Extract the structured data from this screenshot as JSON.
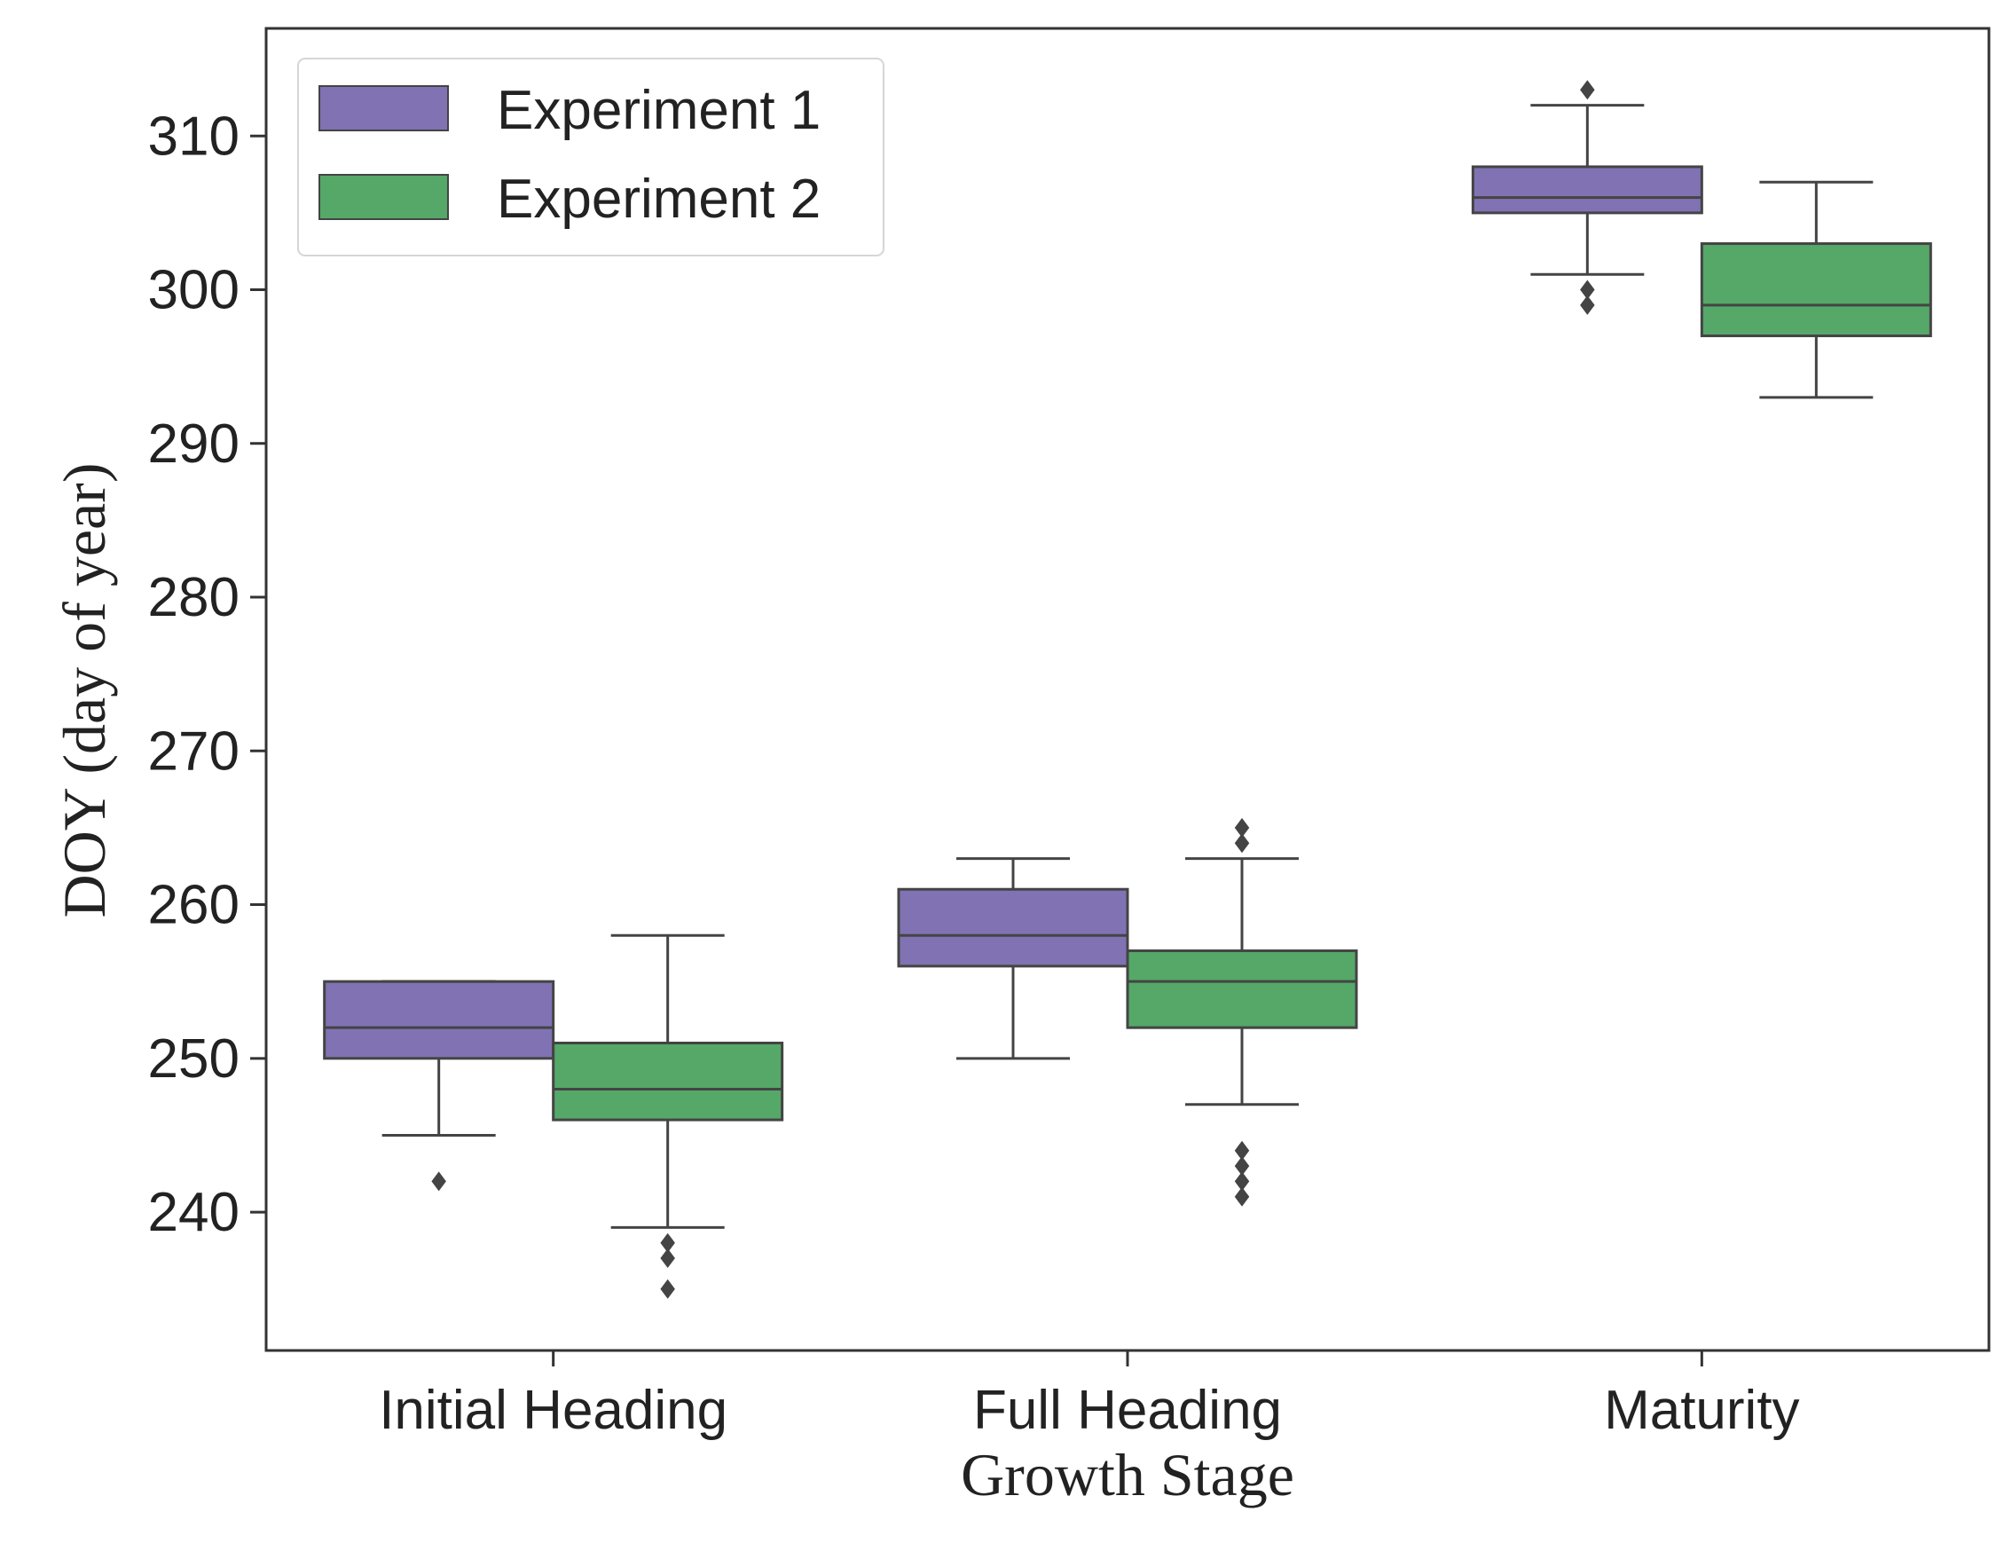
{
  "chart_data": {
    "type": "box",
    "xlabel": "Growth Stage",
    "ylabel": "DOY (day of year)",
    "ylim": [
      231,
      317
    ],
    "yticks": [
      240,
      250,
      260,
      270,
      280,
      290,
      300,
      310
    ],
    "categories": [
      "Initial Heading",
      "Full Heading",
      "Maturity"
    ],
    "legend_position": "top-left",
    "series": [
      {
        "name": "Experiment 1",
        "color": "#8172b3",
        "boxes": [
          {
            "category": "Initial Heading",
            "whisker_low": 245,
            "q1": 250,
            "median": 252,
            "q3": 255,
            "whisker_high": 255,
            "outliers": [
              242
            ]
          },
          {
            "category": "Full Heading",
            "whisker_low": 250,
            "q1": 256,
            "median": 258,
            "q3": 261,
            "whisker_high": 263,
            "outliers": []
          },
          {
            "category": "Maturity",
            "whisker_low": 301,
            "q1": 305,
            "median": 306,
            "q3": 308,
            "whisker_high": 312,
            "outliers": [
              313,
              300,
              299
            ]
          }
        ]
      },
      {
        "name": "Experiment 2",
        "color": "#55a868",
        "boxes": [
          {
            "category": "Initial Heading",
            "whisker_low": 239,
            "q1": 246,
            "median": 248,
            "q3": 251,
            "whisker_high": 258,
            "outliers": [
              238,
              237,
              235
            ]
          },
          {
            "category": "Full Heading",
            "whisker_low": 247,
            "q1": 252,
            "median": 255,
            "q3": 257,
            "whisker_high": 263,
            "outliers": [
              265,
              264,
              244,
              243,
              242,
              241
            ]
          },
          {
            "category": "Maturity",
            "whisker_low": 293,
            "q1": 297,
            "median": 299,
            "q3": 303,
            "whisker_high": 307,
            "outliers": []
          }
        ]
      }
    ]
  }
}
